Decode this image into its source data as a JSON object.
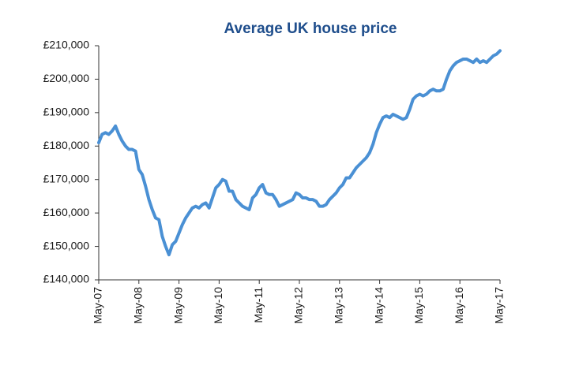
{
  "chart_data": {
    "type": "line",
    "title": "Average UK house price",
    "color": "#4a90d4",
    "grid": false,
    "ylim": [
      140000,
      210000
    ],
    "yticks": [
      {
        "value": 140000,
        "label": "£140,000"
      },
      {
        "value": 150000,
        "label": "£150,000"
      },
      {
        "value": 160000,
        "label": "£160,000"
      },
      {
        "value": 170000,
        "label": "£170,000"
      },
      {
        "value": 180000,
        "label": "£180,000"
      },
      {
        "value": 190000,
        "label": "£190,000"
      },
      {
        "value": 200000,
        "label": "£200,000"
      },
      {
        "value": 210000,
        "label": "£210,000"
      }
    ],
    "categories": [
      "May-07",
      null,
      null,
      null,
      null,
      null,
      null,
      null,
      null,
      null,
      null,
      null,
      "May-08",
      null,
      null,
      null,
      null,
      null,
      null,
      null,
      null,
      null,
      null,
      null,
      "May-09",
      null,
      null,
      null,
      null,
      null,
      null,
      null,
      null,
      null,
      null,
      null,
      "May-10",
      null,
      null,
      null,
      null,
      null,
      null,
      null,
      null,
      null,
      null,
      null,
      "May-11",
      null,
      null,
      null,
      null,
      null,
      null,
      null,
      null,
      null,
      null,
      null,
      "May-12",
      null,
      null,
      null,
      null,
      null,
      null,
      null,
      null,
      null,
      null,
      null,
      "May-13",
      null,
      null,
      null,
      null,
      null,
      null,
      null,
      null,
      null,
      null,
      null,
      "May-14",
      null,
      null,
      null,
      null,
      null,
      null,
      null,
      null,
      null,
      null,
      null,
      "May-15",
      null,
      null,
      null,
      null,
      null,
      null,
      null,
      null,
      null,
      null,
      null,
      "May-16",
      null,
      null,
      null,
      null,
      null,
      null,
      null,
      null,
      null,
      null,
      null,
      "May-17"
    ],
    "values": [
      181000,
      183500,
      184000,
      183500,
      184500,
      186000,
      183500,
      181500,
      180000,
      179000,
      179000,
      178500,
      173000,
      171500,
      168000,
      164000,
      161000,
      158500,
      158000,
      153000,
      150000,
      147500,
      150500,
      151500,
      154000,
      156500,
      158500,
      160000,
      161500,
      162000,
      161500,
      162500,
      163000,
      161500,
      164500,
      167500,
      168500,
      170000,
      169500,
      166500,
      166500,
      164000,
      163000,
      162000,
      161500,
      161000,
      164500,
      165500,
      167500,
      168500,
      166000,
      165500,
      165500,
      164000,
      162000,
      162500,
      163000,
      163500,
      164000,
      166000,
      165500,
      164500,
      164500,
      164000,
      164000,
      163500,
      162000,
      162000,
      162500,
      164000,
      165000,
      166000,
      167500,
      168500,
      170500,
      170500,
      172000,
      173500,
      174500,
      175500,
      176500,
      178000,
      180500,
      184000,
      186500,
      188500,
      189000,
      188500,
      189500,
      189000,
      188500,
      188000,
      188500,
      191000,
      194000,
      195000,
      195500,
      195000,
      195500,
      196500,
      197000,
      196500,
      196500,
      197000,
      200000,
      202500,
      204000,
      205000,
      205500,
      206000,
      206000,
      205500,
      205000,
      206000,
      205000,
      205500,
      205000,
      206000,
      207000,
      207500,
      208500
    ]
  }
}
